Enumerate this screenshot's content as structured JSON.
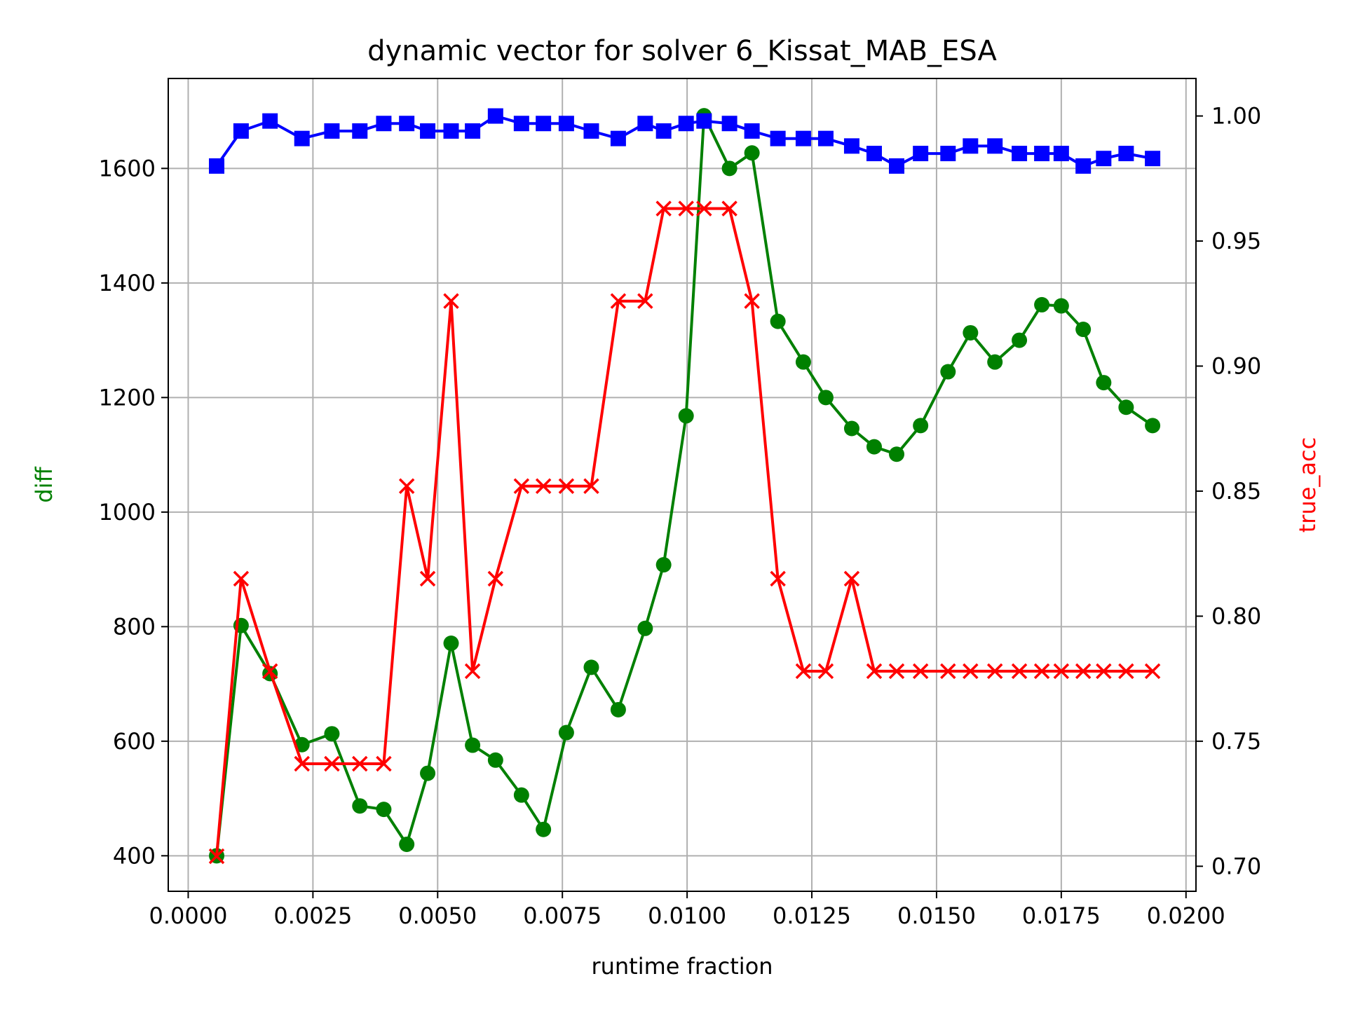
{
  "chart_data": {
    "type": "line",
    "title": "dynamic vector for solver 6_Kissat_MAB_ESA",
    "xlabel": "runtime fraction",
    "ylabel_left": "diff",
    "ylabel_right": "true_acc",
    "xlim": [
      -0.0004,
      0.0202
    ],
    "ylim_left": [
      338,
      1757
    ],
    "ylim_right": [
      0.69,
      1.015
    ],
    "x_ticks": [
      0.0,
      0.0025,
      0.005,
      0.0075,
      0.01,
      0.0125,
      0.015,
      0.0175,
      0.02
    ],
    "x_tick_labels": [
      "0.0000",
      "0.0025",
      "0.0050",
      "0.0075",
      "0.0100",
      "0.0125",
      "0.0150",
      "0.0175",
      "0.0200"
    ],
    "y_left_ticks": [
      400,
      600,
      800,
      1000,
      1200,
      1400,
      1600
    ],
    "y_left_tick_labels": [
      "400",
      "600",
      "800",
      "1000",
      "1200",
      "1400",
      "1600"
    ],
    "y_right_ticks": [
      0.7,
      0.75,
      0.8,
      0.85,
      0.9,
      0.95,
      1.0
    ],
    "y_right_tick_labels": [
      "0.70",
      "0.75",
      "0.80",
      "0.85",
      "0.90",
      "0.95",
      "1.00"
    ],
    "grid": true,
    "x": [
      0.00057,
      0.00106,
      0.00164,
      0.00228,
      0.00288,
      0.00344,
      0.00392,
      0.00438,
      0.0048,
      0.00527,
      0.0057,
      0.00616,
      0.00668,
      0.00712,
      0.00758,
      0.00808,
      0.00862,
      0.00916,
      0.00953,
      0.00998,
      0.01034,
      0.01085,
      0.0113,
      0.01182,
      0.01233,
      0.01278,
      0.0133,
      0.01375,
      0.0142,
      0.01468,
      0.01523,
      0.01568,
      0.01617,
      0.01666,
      0.01711,
      0.0175,
      0.01794,
      0.01835,
      0.0188,
      0.01933
    ],
    "series": [
      {
        "name": "diff",
        "axis": "left",
        "color": "#008000",
        "marker": "circle",
        "values": [
          400,
          802,
          718,
          594,
          613,
          487,
          481,
          420,
          544,
          771,
          593,
          567,
          506,
          446,
          615,
          729,
          655,
          797,
          908,
          1168,
          1692,
          1600,
          1627,
          1333,
          1262,
          1200,
          1146,
          1114,
          1101,
          1151,
          1245,
          1313,
          1262,
          1300,
          1362,
          1360,
          1319,
          1226,
          1183,
          1151
        ]
      },
      {
        "name": "true_acc",
        "axis": "right",
        "color": "#ff0000",
        "marker": "x",
        "values": [
          0.704,
          0.815,
          0.778,
          0.741,
          0.741,
          0.741,
          0.741,
          0.852,
          0.815,
          0.926,
          0.778,
          0.815,
          0.852,
          0.852,
          0.852,
          0.852,
          0.926,
          0.926,
          0.963,
          0.963,
          0.963,
          0.963,
          0.926,
          0.815,
          0.778,
          0.778,
          0.815,
          0.778,
          0.778,
          0.778,
          0.778,
          0.778,
          0.778,
          0.778,
          0.778,
          0.778,
          0.778,
          0.778,
          0.778,
          0.778
        ]
      },
      {
        "name": "",
        "axis": "right",
        "color": "#0000ff",
        "marker": "square",
        "values": [
          0.98,
          0.994,
          0.998,
          0.991,
          0.994,
          0.994,
          0.997,
          0.997,
          0.994,
          0.994,
          0.994,
          1.0,
          0.997,
          0.997,
          0.997,
          0.994,
          0.991,
          0.997,
          0.994,
          0.997,
          0.998,
          0.997,
          0.994,
          0.991,
          0.991,
          0.991,
          0.988,
          0.985,
          0.98,
          0.985,
          0.985,
          0.988,
          0.988,
          0.985,
          0.985,
          0.985,
          0.98,
          0.983,
          0.985,
          0.983
        ]
      }
    ]
  }
}
